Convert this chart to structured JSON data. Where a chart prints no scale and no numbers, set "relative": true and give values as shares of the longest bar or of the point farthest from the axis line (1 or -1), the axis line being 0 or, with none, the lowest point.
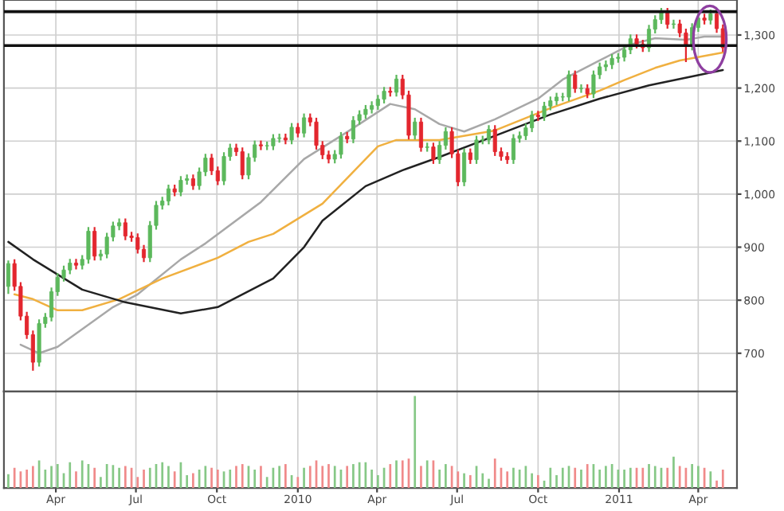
{
  "chart_data": [
    {
      "type": "candlestick",
      "x": [
        "2009-02-06",
        "2009-02-13",
        "2009-02-20",
        "2009-02-27",
        "2009-03-06",
        "2009-03-13",
        "2009-03-20",
        "2009-03-27",
        "2009-04-03",
        "2009-04-10",
        "2009-04-17",
        "2009-04-24",
        "2009-05-01",
        "2009-05-08",
        "2009-05-15",
        "2009-05-22",
        "2009-05-29",
        "2009-06-05",
        "2009-06-12",
        "2009-06-19",
        "2009-06-26",
        "2009-07-03",
        "2009-07-10",
        "2009-07-17",
        "2009-07-24",
        "2009-07-31",
        "2009-08-07",
        "2009-08-14",
        "2009-08-21",
        "2009-08-28",
        "2009-09-04",
        "2009-09-11",
        "2009-09-18",
        "2009-09-25",
        "2009-10-02",
        "2009-10-09",
        "2009-10-16",
        "2009-10-23",
        "2009-10-30",
        "2009-11-06",
        "2009-11-13",
        "2009-11-20",
        "2009-11-27",
        "2009-12-04",
        "2009-12-11",
        "2009-12-18",
        "2009-12-25",
        "2010-01-01",
        "2010-01-08",
        "2010-01-15",
        "2010-01-22",
        "2010-01-29",
        "2010-02-05",
        "2010-02-12",
        "2010-02-19",
        "2010-02-26",
        "2010-03-05",
        "2010-03-12",
        "2010-03-19",
        "2010-03-26",
        "2010-04-02",
        "2010-04-09",
        "2010-04-16",
        "2010-04-23",
        "2010-04-30",
        "2010-05-07",
        "2010-05-14",
        "2010-05-21",
        "2010-05-28",
        "2010-06-04",
        "2010-06-11",
        "2010-06-18",
        "2010-06-25",
        "2010-07-02",
        "2010-07-09",
        "2010-07-16",
        "2010-07-23",
        "2010-07-30",
        "2010-08-06",
        "2010-08-13",
        "2010-08-20",
        "2010-08-27",
        "2010-09-03",
        "2010-09-10",
        "2010-09-17",
        "2010-09-24",
        "2010-10-01",
        "2010-10-08",
        "2010-10-15",
        "2010-10-22",
        "2010-10-29",
        "2010-11-05",
        "2010-11-12",
        "2010-11-19",
        "2010-11-26",
        "2010-12-03",
        "2010-12-10",
        "2010-12-17",
        "2010-12-24",
        "2010-12-31",
        "2011-01-07",
        "2011-01-14",
        "2011-01-21",
        "2011-01-28",
        "2011-02-04",
        "2011-02-11",
        "2011-02-18",
        "2011-02-25",
        "2011-03-04",
        "2011-03-11",
        "2011-03-18",
        "2011-03-25",
        "2011-04-01",
        "2011-04-08",
        "2011-04-15",
        "2011-04-22",
        "2011-04-29"
      ],
      "ohlc": [
        [
          826,
          875,
          812,
          869
        ],
        [
          869,
          877,
          818,
          826
        ],
        [
          826,
          834,
          762,
          770
        ],
        [
          770,
          778,
          727,
          735
        ],
        [
          735,
          743,
          667,
          683
        ],
        [
          683,
          764,
          675,
          756
        ],
        [
          756,
          776,
          748,
          768
        ],
        [
          768,
          824,
          760,
          816
        ],
        [
          816,
          851,
          808,
          843
        ],
        [
          843,
          865,
          835,
          857
        ],
        [
          857,
          878,
          849,
          870
        ],
        [
          870,
          878,
          858,
          866
        ],
        [
          866,
          885,
          858,
          877
        ],
        [
          877,
          938,
          869,
          930
        ],
        [
          930,
          938,
          875,
          883
        ],
        [
          883,
          895,
          875,
          887
        ],
        [
          887,
          927,
          879,
          919
        ],
        [
          919,
          948,
          911,
          940
        ],
        [
          940,
          954,
          932,
          946
        ],
        [
          946,
          954,
          913,
          921
        ],
        [
          921,
          929,
          910,
          918
        ],
        [
          918,
          926,
          888,
          896
        ],
        [
          896,
          904,
          872,
          880
        ],
        [
          880,
          949,
          872,
          941
        ],
        [
          941,
          987,
          933,
          979
        ],
        [
          979,
          995,
          971,
          987
        ],
        [
          987,
          1018,
          979,
          1010
        ],
        [
          1010,
          1018,
          996,
          1004
        ],
        [
          1004,
          1034,
          996,
          1026
        ],
        [
          1026,
          1037,
          1018,
          1029
        ],
        [
          1029,
          1037,
          1008,
          1016
        ],
        [
          1016,
          1050,
          1008,
          1042
        ],
        [
          1042,
          1076,
          1034,
          1068
        ],
        [
          1068,
          1076,
          1036,
          1044
        ],
        [
          1044,
          1052,
          1017,
          1025
        ],
        [
          1025,
          1079,
          1017,
          1071
        ],
        [
          1071,
          1095,
          1063,
          1087
        ],
        [
          1087,
          1095,
          1072,
          1080
        ],
        [
          1080,
          1088,
          1028,
          1036
        ],
        [
          1036,
          1077,
          1028,
          1069
        ],
        [
          1069,
          1101,
          1061,
          1093
        ],
        [
          1093,
          1101,
          1083,
          1091
        ],
        [
          1091,
          1099,
          1083,
          1091
        ],
        [
          1091,
          1113,
          1083,
          1105
        ],
        [
          1105,
          1114,
          1097,
          1106
        ],
        [
          1106,
          1114,
          1094,
          1102
        ],
        [
          1102,
          1134,
          1094,
          1126
        ],
        [
          1126,
          1134,
          1107,
          1115
        ],
        [
          1115,
          1152,
          1107,
          1144
        ],
        [
          1144,
          1152,
          1128,
          1136
        ],
        [
          1136,
          1144,
          1084,
          1092
        ],
        [
          1092,
          1100,
          1066,
          1074
        ],
        [
          1074,
          1082,
          1058,
          1066
        ],
        [
          1066,
          1083,
          1058,
          1075
        ],
        [
          1075,
          1117,
          1067,
          1109
        ],
        [
          1109,
          1117,
          1096,
          1104
        ],
        [
          1104,
          1147,
          1096,
          1139
        ],
        [
          1139,
          1158,
          1131,
          1150
        ],
        [
          1150,
          1168,
          1142,
          1160
        ],
        [
          1160,
          1175,
          1152,
          1167
        ],
        [
          1167,
          1187,
          1159,
          1179
        ],
        [
          1179,
          1202,
          1171,
          1194
        ],
        [
          1194,
          1202,
          1184,
          1192
        ],
        [
          1192,
          1225,
          1184,
          1217
        ],
        [
          1217,
          1225,
          1179,
          1187
        ],
        [
          1187,
          1195,
          1103,
          1111
        ],
        [
          1111,
          1144,
          1103,
          1136
        ],
        [
          1136,
          1144,
          1080,
          1088
        ],
        [
          1088,
          1097,
          1080,
          1089
        ],
        [
          1089,
          1097,
          1057,
          1065
        ],
        [
          1065,
          1100,
          1057,
          1092
        ],
        [
          1092,
          1126,
          1084,
          1118
        ],
        [
          1118,
          1126,
          1068,
          1076
        ],
        [
          1076,
          1084,
          1015,
          1023
        ],
        [
          1023,
          1086,
          1015,
          1078
        ],
        [
          1078,
          1086,
          1057,
          1065
        ],
        [
          1065,
          1110,
          1057,
          1102
        ],
        [
          1102,
          1110,
          1094,
          1102
        ],
        [
          1102,
          1130,
          1094,
          1122
        ],
        [
          1122,
          1130,
          1072,
          1080
        ],
        [
          1080,
          1088,
          1063,
          1071
        ],
        [
          1071,
          1079,
          1057,
          1065
        ],
        [
          1065,
          1113,
          1057,
          1105
        ],
        [
          1105,
          1118,
          1097,
          1110
        ],
        [
          1110,
          1133,
          1102,
          1125
        ],
        [
          1125,
          1157,
          1117,
          1149
        ],
        [
          1149,
          1157,
          1138,
          1146
        ],
        [
          1146,
          1174,
          1138,
          1166
        ],
        [
          1166,
          1184,
          1158,
          1176
        ],
        [
          1176,
          1191,
          1168,
          1183
        ],
        [
          1183,
          1191,
          1175,
          1183
        ],
        [
          1183,
          1233,
          1175,
          1225
        ],
        [
          1225,
          1233,
          1191,
          1199
        ],
        [
          1199,
          1207,
          1191,
          1199
        ],
        [
          1199,
          1207,
          1181,
          1189
        ],
        [
          1189,
          1233,
          1181,
          1225
        ],
        [
          1225,
          1248,
          1217,
          1240
        ],
        [
          1240,
          1252,
          1232,
          1244
        ],
        [
          1244,
          1264,
          1236,
          1256
        ],
        [
          1256,
          1266,
          1248,
          1258
        ],
        [
          1258,
          1280,
          1250,
          1272
        ],
        [
          1272,
          1301,
          1264,
          1293
        ],
        [
          1293,
          1301,
          1275,
          1283
        ],
        [
          1283,
          1291,
          1268,
          1276
        ],
        [
          1276,
          1319,
          1268,
          1311
        ],
        [
          1311,
          1337,
          1303,
          1329
        ],
        [
          1329,
          1351,
          1321,
          1343
        ],
        [
          1343,
          1351,
          1312,
          1320
        ],
        [
          1320,
          1329,
          1312,
          1321
        ],
        [
          1321,
          1329,
          1296,
          1304
        ],
        [
          1304,
          1312,
          1249,
          1279
        ],
        [
          1279,
          1322,
          1271,
          1314
        ],
        [
          1314,
          1340,
          1306,
          1332
        ],
        [
          1332,
          1340,
          1320,
          1328
        ],
        [
          1328,
          1348,
          1320,
          1340
        ],
        [
          1340,
          1348,
          1304,
          1312
        ],
        [
          1312,
          1320,
          1268,
          1276
        ]
      ],
      "colors": [
        "#5cb85c",
        "#e3262e",
        "#e3262e",
        "#e3262e",
        "#e3262e",
        "#5cb85c",
        "#5cb85c",
        "#5cb85c",
        "#5cb85c",
        "#5cb85c",
        "#5cb85c",
        "#e3262e",
        "#5cb85c",
        "#5cb85c",
        "#e3262e",
        "#5cb85c",
        "#5cb85c",
        "#5cb85c",
        "#5cb85c",
        "#e3262e",
        "#e3262e",
        "#e3262e",
        "#e3262e",
        "#5cb85c",
        "#5cb85c",
        "#5cb85c",
        "#5cb85c",
        "#e3262e",
        "#5cb85c",
        "#5cb85c",
        "#e3262e",
        "#5cb85c",
        "#5cb85c",
        "#e3262e",
        "#e3262e",
        "#5cb85c",
        "#5cb85c",
        "#e3262e",
        "#e3262e",
        "#5cb85c",
        "#5cb85c",
        "#e3262e",
        "#5cb85c",
        "#5cb85c",
        "#5cb85c",
        "#e3262e",
        "#5cb85c",
        "#e3262e",
        "#5cb85c",
        "#e3262e",
        "#e3262e",
        "#e3262e",
        "#e3262e",
        "#5cb85c",
        "#5cb85c",
        "#e3262e",
        "#5cb85c",
        "#5cb85c",
        "#5cb85c",
        "#5cb85c",
        "#5cb85c",
        "#5cb85c",
        "#e3262e",
        "#5cb85c",
        "#e3262e",
        "#e3262e",
        "#5cb85c",
        "#e3262e",
        "#5cb85c",
        "#e3262e",
        "#5cb85c",
        "#5cb85c",
        "#e3262e",
        "#e3262e",
        "#5cb85c",
        "#e3262e",
        "#5cb85c",
        "#5cb85c",
        "#5cb85c",
        "#e3262e",
        "#e3262e",
        "#e3262e",
        "#5cb85c",
        "#5cb85c",
        "#5cb85c",
        "#5cb85c",
        "#e3262e",
        "#5cb85c",
        "#5cb85c",
        "#5cb85c",
        "#5cb85c",
        "#5cb85c",
        "#e3262e",
        "#5cb85c",
        "#e3262e",
        "#5cb85c",
        "#5cb85c",
        "#5cb85c",
        "#5cb85c",
        "#5cb85c",
        "#5cb85c",
        "#5cb85c",
        "#e3262e",
        "#e3262e",
        "#5cb85c",
        "#5cb85c",
        "#5cb85c",
        "#e3262e",
        "#5cb85c",
        "#e3262e",
        "#e3262e",
        "#5cb85c",
        "#5cb85c",
        "#e3262e",
        "#5cb85c",
        "#e3262e",
        "#e3262e"
      ],
      "series": [
        {
          "type": "line",
          "color": "#a8a8a8",
          "x": [
            "2009-02-20",
            "2009-03-13",
            "2009-04-03",
            "2009-06-05",
            "2009-07-03",
            "2009-08-21",
            "2009-09-18",
            "2009-11-20",
            "2010-01-08",
            "2010-02-26",
            "2010-04-16",
            "2010-05-14",
            "2010-06-11",
            "2010-07-09",
            "2010-08-13",
            "2010-10-01",
            "2010-10-29",
            "2010-12-10",
            "2011-01-14",
            "2011-02-11",
            "2011-03-18",
            "2011-04-08",
            "2011-04-29"
          ],
          "values": [
            716,
            700,
            712,
            787,
            811,
            877,
            907,
            985,
            1066,
            1117,
            1170,
            1160,
            1132,
            1118,
            1141,
            1180,
            1216,
            1252,
            1282,
            1294,
            1291,
            1297,
            1297
          ]
        },
        {
          "type": "line",
          "color": "#f0b040",
          "x": [
            "2009-02-13",
            "2009-03-06",
            "2009-04-03",
            "2009-05-01",
            "2009-06-12",
            "2009-07-31",
            "2009-10-02",
            "2009-11-06",
            "2009-12-04",
            "2010-01-29",
            "2010-04-02",
            "2010-04-23",
            "2010-06-11",
            "2010-08-13",
            "2010-10-15",
            "2010-12-10",
            "2011-01-07",
            "2011-02-11",
            "2011-03-11",
            "2011-04-29"
          ],
          "values": [
            811,
            802,
            781,
            781,
            802,
            841,
            880,
            910,
            925,
            982,
            1090,
            1102,
            1102,
            1120,
            1162,
            1195,
            1215,
            1238,
            1252,
            1267
          ]
        },
        {
          "type": "line",
          "color": "#222222",
          "x": [
            "2009-02-06",
            "2009-03-06",
            "2009-05-01",
            "2009-06-19",
            "2009-08-21",
            "2009-10-02",
            "2009-12-04",
            "2010-01-08",
            "2010-01-29",
            "2010-03-19",
            "2010-04-30",
            "2010-06-11",
            "2010-08-13",
            "2010-10-15",
            "2010-12-10",
            "2011-02-04",
            "2011-04-29"
          ],
          "values": [
            910,
            877,
            820,
            796,
            775,
            787,
            841,
            900,
            950,
            1015,
            1045,
            1070,
            1110,
            1150,
            1180,
            1205,
            1234
          ]
        }
      ],
      "ref_lines": [
        {
          "axis": "y",
          "value": 1344,
          "color": "#111111"
        },
        {
          "axis": "y",
          "value": 1280,
          "color": "#111111"
        }
      ],
      "xlim": [
        "2009-02-01",
        "2011-05-15"
      ],
      "xticks": [
        {
          "value": "2009-04-01",
          "label": null
        },
        {
          "value": "2009-07-01",
          "label": null
        },
        {
          "value": "2009-10-01",
          "label": null
        },
        {
          "value": "2010-01-01",
          "label": null
        },
        {
          "value": "2010-04-01",
          "label": null
        },
        {
          "value": "2010-07-01",
          "label": null
        },
        {
          "value": "2010-10-01",
          "label": null
        },
        {
          "value": "2011-01-01",
          "label": null
        },
        {
          "value": "2011-04-01",
          "label": null
        }
      ],
      "ylim": [
        628,
        1366
      ],
      "yticks": [
        700,
        800,
        900,
        {
          "value": 1000,
          "label": "1,000"
        },
        {
          "value": 1100,
          "label": "1,100"
        },
        {
          "value": 1200,
          "label": "1,200"
        },
        {
          "value": 1300,
          "label": "1,300"
        }
      ],
      "grid": true,
      "tick_labels": "y"
    },
    {
      "type": "bar",
      "relative": true,
      "x": [
        "2009-02-06",
        "2009-02-13",
        "2009-02-20",
        "2009-02-27",
        "2009-03-06",
        "2009-03-13",
        "2009-03-20",
        "2009-03-27",
        "2009-04-03",
        "2009-04-10",
        "2009-04-17",
        "2009-04-24",
        "2009-05-01",
        "2009-05-08",
        "2009-05-15",
        "2009-05-22",
        "2009-05-29",
        "2009-06-05",
        "2009-06-12",
        "2009-06-19",
        "2009-06-26",
        "2009-07-03",
        "2009-07-10",
        "2009-07-17",
        "2009-07-24",
        "2009-07-31",
        "2009-08-07",
        "2009-08-14",
        "2009-08-21",
        "2009-08-28",
        "2009-09-04",
        "2009-09-11",
        "2009-09-18",
        "2009-09-25",
        "2009-10-02",
        "2009-10-09",
        "2009-10-16",
        "2009-10-23",
        "2009-10-30",
        "2009-11-06",
        "2009-11-13",
        "2009-11-20",
        "2009-11-27",
        "2009-12-04",
        "2009-12-11",
        "2009-12-18",
        "2009-12-25",
        "2010-01-01",
        "2010-01-08",
        "2010-01-15",
        "2010-01-22",
        "2010-01-29",
        "2010-02-05",
        "2010-02-12",
        "2010-02-19",
        "2010-02-26",
        "2010-03-05",
        "2010-03-12",
        "2010-03-19",
        "2010-03-26",
        "2010-04-02",
        "2010-04-09",
        "2010-04-16",
        "2010-04-23",
        "2010-04-30",
        "2010-05-07",
        "2010-05-14",
        "2010-05-21",
        "2010-05-28",
        "2010-06-04",
        "2010-06-11",
        "2010-06-18",
        "2010-06-25",
        "2010-07-02",
        "2010-07-09",
        "2010-07-16",
        "2010-07-23",
        "2010-07-30",
        "2010-08-06",
        "2010-08-13",
        "2010-08-20",
        "2010-08-27",
        "2010-09-03",
        "2010-09-10",
        "2010-09-17",
        "2010-09-24",
        "2010-10-01",
        "2010-10-08",
        "2010-10-15",
        "2010-10-22",
        "2010-10-29",
        "2010-11-05",
        "2010-11-12",
        "2010-11-19",
        "2010-11-26",
        "2010-12-03",
        "2010-12-10",
        "2010-12-17",
        "2010-12-24",
        "2010-12-31",
        "2011-01-07",
        "2011-01-14",
        "2011-01-21",
        "2011-01-28",
        "2011-02-04",
        "2011-02-11",
        "2011-02-18",
        "2011-02-25",
        "2011-03-04",
        "2011-03-11",
        "2011-03-18",
        "2011-03-25",
        "2011-04-01",
        "2011-04-08",
        "2011-04-15",
        "2011-04-22",
        "2011-04-29"
      ],
      "values": [
        0.15,
        0.22,
        0.18,
        0.2,
        0.24,
        0.3,
        0.2,
        0.24,
        0.26,
        0.16,
        0.28,
        0.18,
        0.3,
        0.26,
        0.22,
        0.12,
        0.26,
        0.25,
        0.22,
        0.24,
        0.22,
        0.12,
        0.2,
        0.22,
        0.26,
        0.28,
        0.24,
        0.18,
        0.28,
        0.14,
        0.16,
        0.2,
        0.24,
        0.22,
        0.2,
        0.18,
        0.2,
        0.24,
        0.26,
        0.24,
        0.2,
        0.24,
        0.12,
        0.22,
        0.24,
        0.26,
        0.14,
        0.12,
        0.22,
        0.24,
        0.3,
        0.24,
        0.26,
        0.24,
        0.2,
        0.24,
        0.26,
        0.28,
        0.28,
        0.2,
        0.14,
        0.22,
        0.26,
        0.3,
        0.3,
        0.32,
        1.0,
        0.24,
        0.3,
        0.3,
        0.2,
        0.26,
        0.24,
        0.18,
        0.16,
        0.14,
        0.24,
        0.16,
        0.1,
        0.32,
        0.22,
        0.18,
        0.22,
        0.2,
        0.24,
        0.16,
        0.14,
        0.08,
        0.22,
        0.14,
        0.22,
        0.24,
        0.22,
        0.2,
        0.26,
        0.26,
        0.2,
        0.24,
        0.26,
        0.2,
        0.2,
        0.22,
        0.22,
        0.22,
        0.26,
        0.24,
        0.22,
        0.22,
        0.34,
        0.24,
        0.22,
        0.26,
        0.24,
        0.22,
        0.18,
        0.08,
        0.2
      ],
      "colors": [
        "#86c886",
        "#f08a8a",
        "#f08a8a",
        "#f08a8a",
        "#f08a8a",
        "#86c886",
        "#86c886",
        "#86c886",
        "#86c886",
        "#86c886",
        "#86c886",
        "#f08a8a",
        "#86c886",
        "#86c886",
        "#f08a8a",
        "#86c886",
        "#86c886",
        "#86c886",
        "#86c886",
        "#f08a8a",
        "#f08a8a",
        "#f08a8a",
        "#f08a8a",
        "#86c886",
        "#86c886",
        "#86c886",
        "#86c886",
        "#f08a8a",
        "#86c886",
        "#86c886",
        "#f08a8a",
        "#86c886",
        "#86c886",
        "#f08a8a",
        "#f08a8a",
        "#86c886",
        "#86c886",
        "#f08a8a",
        "#f08a8a",
        "#86c886",
        "#86c886",
        "#f08a8a",
        "#86c886",
        "#86c886",
        "#86c886",
        "#f08a8a",
        "#86c886",
        "#f08a8a",
        "#86c886",
        "#f08a8a",
        "#f08a8a",
        "#f08a8a",
        "#f08a8a",
        "#86c886",
        "#86c886",
        "#f08a8a",
        "#86c886",
        "#86c886",
        "#86c886",
        "#86c886",
        "#86c886",
        "#86c886",
        "#f08a8a",
        "#86c886",
        "#f08a8a",
        "#f08a8a",
        "#86c886",
        "#f08a8a",
        "#86c886",
        "#f08a8a",
        "#86c886",
        "#86c886",
        "#f08a8a",
        "#f08a8a",
        "#86c886",
        "#f08a8a",
        "#86c886",
        "#86c886",
        "#86c886",
        "#f08a8a",
        "#f08a8a",
        "#f08a8a",
        "#86c886",
        "#86c886",
        "#86c886",
        "#86c886",
        "#f08a8a",
        "#86c886",
        "#86c886",
        "#86c886",
        "#86c886",
        "#86c886",
        "#f08a8a",
        "#86c886",
        "#f08a8a",
        "#86c886",
        "#86c886",
        "#86c886",
        "#86c886",
        "#86c886",
        "#86c886",
        "#86c886",
        "#f08a8a",
        "#f08a8a",
        "#86c886",
        "#86c886",
        "#86c886",
        "#f08a8a",
        "#86c886",
        "#f08a8a",
        "#f08a8a",
        "#86c886",
        "#86c886",
        "#f08a8a",
        "#86c886",
        "#f08a8a",
        "#f08a8a"
      ],
      "xlim": [
        "2009-02-01",
        "2011-05-15"
      ],
      "xticks": [
        {
          "value": "2009-04-01",
          "label": "Apr"
        },
        {
          "value": "2009-07-01",
          "label": "Jul"
        },
        {
          "value": "2009-10-01",
          "label": "Oct"
        },
        {
          "value": "2010-01-01",
          "label": "2010"
        },
        {
          "value": "2010-04-01",
          "label": "Apr"
        },
        {
          "value": "2010-07-01",
          "label": "Jul"
        },
        {
          "value": "2010-10-01",
          "label": "Oct"
        },
        {
          "value": "2011-01-01",
          "label": "2011"
        },
        {
          "value": "2011-04-01",
          "label": "Apr"
        }
      ],
      "grid": "x",
      "tick_labels": "x"
    }
  ]
}
